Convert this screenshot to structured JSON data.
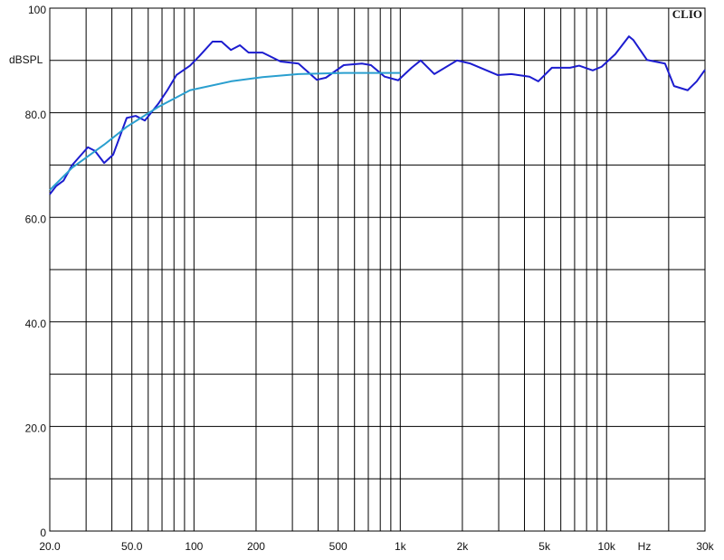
{
  "chart_data": {
    "type": "line",
    "xscale": "log",
    "brand": "CLIO",
    "y_label": "dBSPL",
    "x_label": "Hz",
    "xlim": [
      20,
      30000
    ],
    "ylim": [
      0,
      100
    ],
    "xticks": [
      {
        "value": 20,
        "label": "20.0"
      },
      {
        "value": 50,
        "label": "50.0"
      },
      100,
      200,
      500,
      {
        "value": 1000,
        "label": "1k"
      },
      {
        "value": 2000,
        "label": "2k"
      },
      {
        "value": 5000,
        "label": "5k"
      },
      {
        "value": 10000,
        "label": "10k"
      },
      {
        "value": 30000,
        "label": "30k"
      }
    ],
    "xminor": [
      30,
      40,
      60,
      70,
      80,
      90,
      300,
      400,
      600,
      700,
      800,
      900,
      3000,
      4000,
      6000,
      7000,
      8000,
      9000,
      20000
    ],
    "yticks": [
      0,
      {
        "value": 20,
        "label": "20.0"
      },
      {
        "value": 40,
        "label": "40.0"
      },
      {
        "value": 60,
        "label": "60.0"
      },
      {
        "value": 80,
        "label": "80.0"
      },
      100
    ],
    "yminor": [
      10,
      30,
      50,
      70,
      90
    ],
    "grid": true,
    "series": [
      {
        "color": "#1c1ccf",
        "x": [
          20,
          21.5,
          23.3,
          25.7,
          30.6,
          33.1,
          36.7,
          40.6,
          47.2,
          52.2,
          57.8,
          67.1,
          74.3,
          82.2,
          95.7,
          106,
          123,
          136,
          151,
          167,
          184,
          215,
          263,
          321,
          394,
          436,
          532,
          652,
          721,
          840,
          977,
          1135,
          1256,
          1462,
          1884,
          2189,
          2965,
          3452,
          4227,
          4666,
          5432,
          6651,
          7361,
          8570,
          9466,
          11020,
          12830,
          13490,
          15700,
          19200,
          21240,
          24720,
          27350,
          30000
        ],
        "values": [
          64.4,
          66,
          67,
          70,
          73.4,
          72.7,
          70.4,
          72,
          79,
          79.4,
          78.5,
          81.7,
          84.3,
          87.2,
          89,
          90.8,
          93.6,
          93.6,
          92,
          92.9,
          91.5,
          91.5,
          89.8,
          89.4,
          86.3,
          86.7,
          89.1,
          89.4,
          89.1,
          86.9,
          86.2,
          88.6,
          90,
          87.4,
          90,
          89.4,
          87.2,
          87.4,
          86.9,
          86,
          88.6,
          88.6,
          89,
          88.1,
          88.8,
          91.2,
          94.6,
          93.9,
          90.1,
          89.4,
          85.1,
          84.3,
          86,
          88.2
        ]
      },
      {
        "color": "#2a9fcf",
        "x": [
          20,
          25.7,
          36.7,
          47.2,
          67.1,
          95.7,
          151,
          215,
          321,
          532,
          1000
        ],
        "values": [
          65.2,
          69.5,
          73.9,
          77.3,
          81.1,
          84.3,
          86,
          86.8,
          87.4,
          87.6,
          87.6
        ]
      }
    ]
  }
}
